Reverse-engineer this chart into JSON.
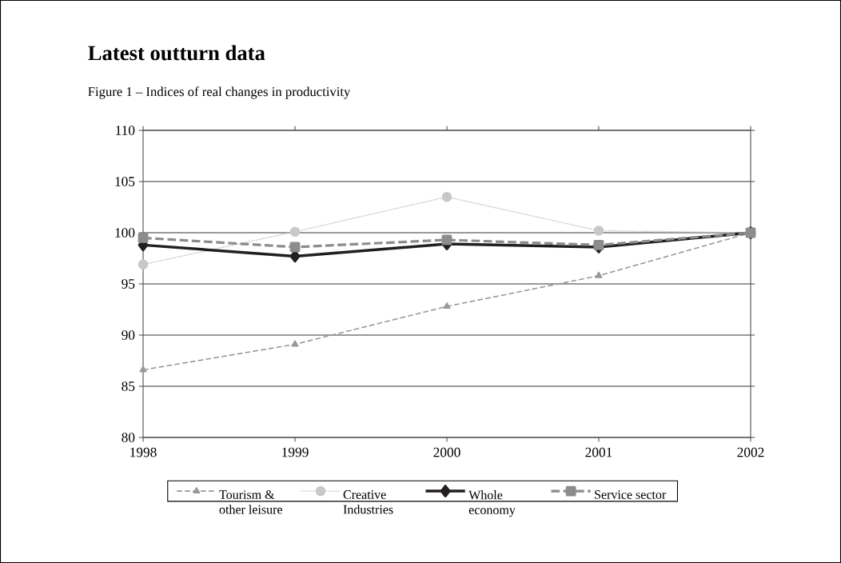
{
  "chart_data": {
    "type": "line",
    "title": "Latest outturn data",
    "subtitle": "Figure 1 – Indices of real changes in productivity",
    "x": [
      1998,
      1999,
      2000,
      2001,
      2002
    ],
    "xlim": [
      1998,
      2002
    ],
    "xticks": [
      1998,
      1999,
      2000,
      2001,
      2002
    ],
    "ylim": [
      80,
      110
    ],
    "yticks": [
      80,
      85,
      90,
      95,
      100,
      105,
      110
    ],
    "grid": "y",
    "legend": "bottom",
    "series": [
      {
        "name": "Tourism & other leisure",
        "color": "#999999",
        "marker": "triangle",
        "line_style": "dashed",
        "values": [
          86.6,
          89.1,
          92.8,
          95.8,
          100
        ]
      },
      {
        "name": "Creative Industries",
        "color": "#c8c8c8",
        "marker": "circle",
        "line_style": "dotted",
        "values": [
          96.9,
          100.1,
          103.5,
          100.2,
          100
        ]
      },
      {
        "name": "Whole economy",
        "color": "#231f20",
        "marker": "diamond",
        "line_style": "solid",
        "values": [
          98.8,
          97.7,
          98.9,
          98.6,
          100
        ]
      },
      {
        "name": "Service sector",
        "color": "#8c8c8c",
        "marker": "square",
        "line_style": "dashed",
        "values": [
          99.5,
          98.6,
          99.3,
          98.8,
          100
        ]
      }
    ]
  }
}
